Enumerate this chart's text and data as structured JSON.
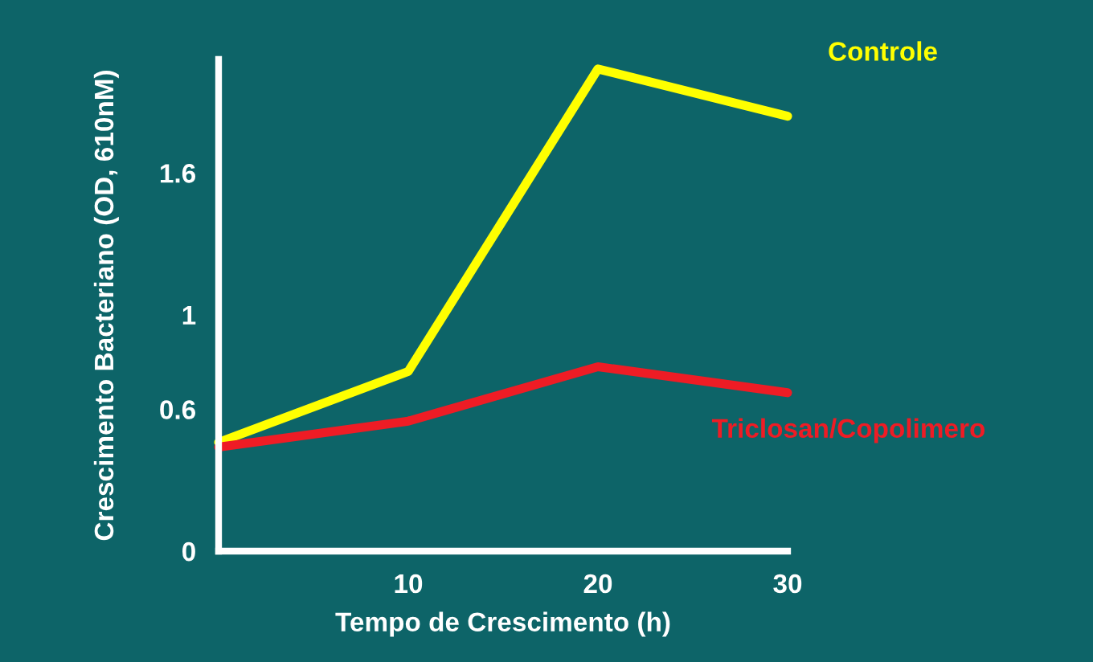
{
  "chart_data": {
    "type": "line",
    "xlabel": "Tempo de Crescimento (h)",
    "ylabel": "Crescimento Bacteriano (OD, 610nM)",
    "x": [
      0,
      10,
      20,
      30
    ],
    "series": [
      {
        "name": "Controle",
        "color": "#ffff00",
        "values": [
          0.46,
          0.76,
          2.04,
          1.84
        ]
      },
      {
        "name": "Triclosan/Copolimero",
        "color": "#ee1c25",
        "values": [
          0.44,
          0.55,
          0.78,
          0.67
        ]
      }
    ],
    "xlim": [
      0,
      30
    ],
    "xticks": [
      10,
      20,
      30
    ],
    "ylim": [
      0,
      2.08
    ],
    "yticks": [
      0,
      0.6,
      1,
      1.6
    ],
    "grid": false,
    "legend": false,
    "marker": "none",
    "line_style": "solid"
  }
}
